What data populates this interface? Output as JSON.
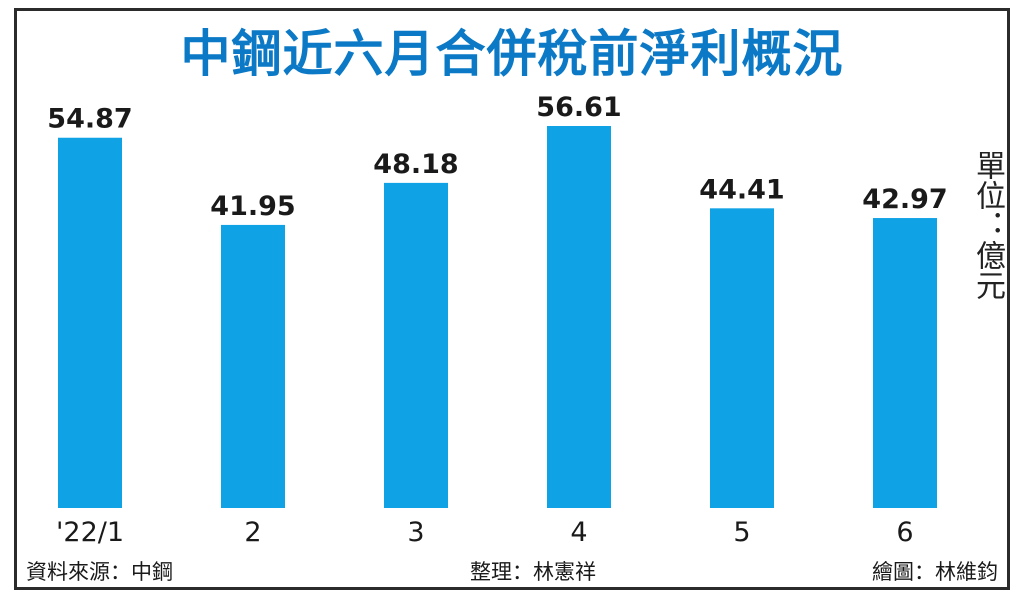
{
  "chart_data": {
    "type": "bar",
    "title": "中鋼近六月合併稅前淨利概況",
    "unit": "單位：億元",
    "categories": [
      "'22/1",
      "2",
      "3",
      "4",
      "5",
      "6"
    ],
    "values": [
      54.87,
      41.95,
      48.18,
      56.61,
      44.41,
      42.97
    ],
    "value_labels": [
      "54.87",
      "41.95",
      "48.18",
      "56.61",
      "44.41",
      "42.97"
    ],
    "ylim": [
      0,
      56.61
    ],
    "grid": false,
    "legend": "none",
    "bar_color": "#0fa3e6"
  },
  "footer": {
    "source": "資料來源：中鋼",
    "compiler": "整理：林憲祥",
    "illustrator": "繪圖：林維鈞"
  }
}
